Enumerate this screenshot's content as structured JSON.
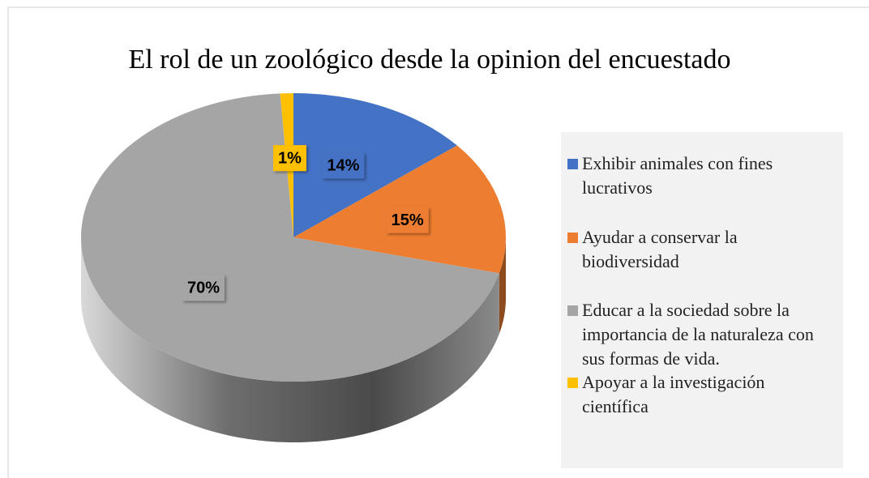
{
  "chart_data": {
    "type": "pie",
    "title": "El rol de un zoológico desde la opinion del encuestado",
    "categories": [
      "Exhibir animales con fines lucrativos",
      "Ayudar a conservar la biodiversidad",
      "Educar a la sociedad sobre la importancia de la naturaleza con sus formas de vida.",
      "Apoyar a la investigación científica"
    ],
    "values": [
      14,
      15,
      70,
      1
    ],
    "value_labels": [
      "14%",
      "15%",
      "70%",
      "1%"
    ],
    "colors": [
      "#4472c4",
      "#ed7d31",
      "#a5a5a5",
      "#ffc000"
    ],
    "legend": "right"
  }
}
